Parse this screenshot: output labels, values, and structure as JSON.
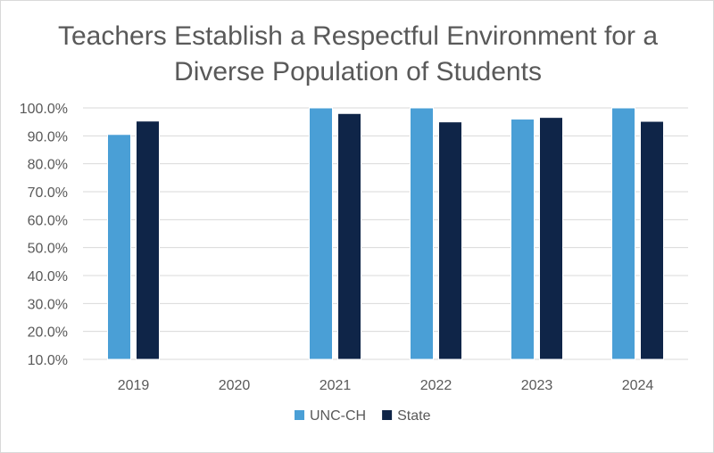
{
  "chart_data": {
    "type": "bar",
    "title_lines": [
      "Teachers Establish a Respectful Environment for a",
      "Diverse Population of Students"
    ],
    "categories": [
      "2019",
      "2020",
      "2021",
      "2022",
      "2023",
      "2024"
    ],
    "series": [
      {
        "name": "UNC-CH",
        "color": "#4a9fd6",
        "values": [
          90.5,
          null,
          100.0,
          100.0,
          96.0,
          100.0
        ]
      },
      {
        "name": "State",
        "color": "#0f2548",
        "values": [
          95.3,
          null,
          98.0,
          95.0,
          96.6,
          95.2
        ]
      }
    ],
    "ylim": [
      10,
      100
    ],
    "yticks": [
      10,
      20,
      30,
      40,
      50,
      60,
      70,
      80,
      90,
      100
    ],
    "ytick_labels": [
      "10.0%",
      "20.0%",
      "30.0%",
      "40.0%",
      "50.0%",
      "60.0%",
      "70.0%",
      "80.0%",
      "90.0%",
      "100.0%"
    ],
    "grid": true,
    "legend_position": "bottom"
  }
}
